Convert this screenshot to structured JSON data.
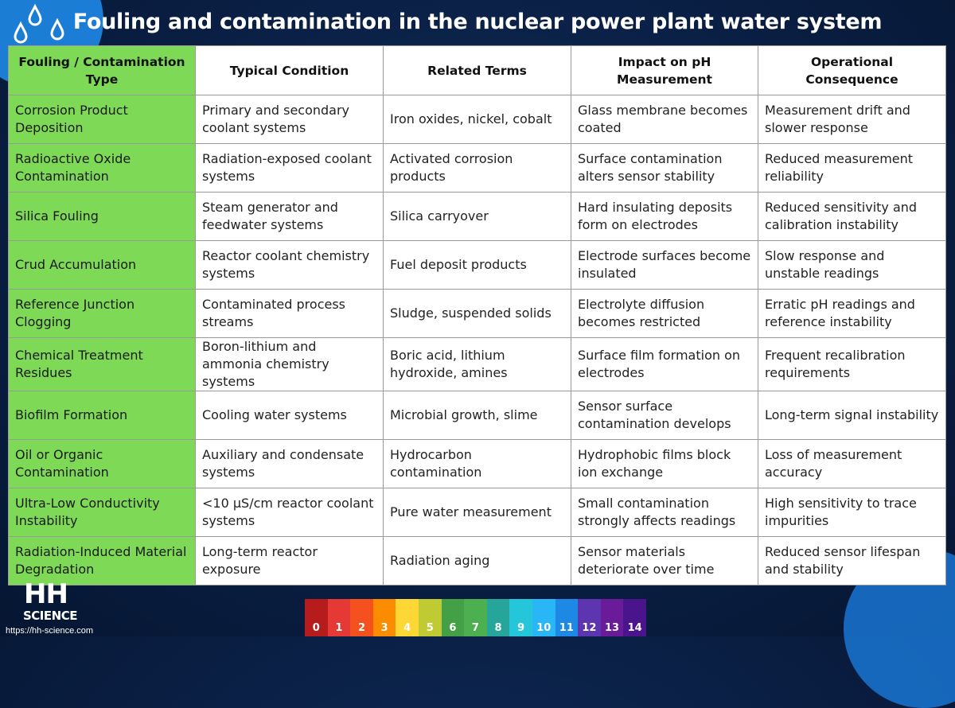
{
  "title": "Fouling and contamination in the nuclear power plant water system",
  "table": {
    "headers": [
      "Fouling / Contamination Type",
      "Typical Condition",
      "Related Terms",
      "Impact on pH Measurement",
      "Operational Consequence"
    ],
    "rows": [
      [
        "Corrosion Product Deposition",
        "Primary and secondary coolant systems",
        "Iron oxides, nickel, cobalt",
        "Glass membrane becomes coated",
        "Measurement drift and slower response"
      ],
      [
        "Radioactive Oxide Contamination",
        "Radiation-exposed coolant systems",
        "Activated corrosion products",
        "Surface contamination alters sensor stability",
        "Reduced measurement reliability"
      ],
      [
        "Silica Fouling",
        "Steam generator and feedwater systems",
        "Silica carryover",
        "Hard insulating deposits form on electrodes",
        "Reduced sensitivity and calibration instability"
      ],
      [
        "Crud Accumulation",
        "Reactor coolant chemistry systems",
        "Fuel deposit products",
        "Electrode surfaces become insulated",
        "Slow response and unstable readings"
      ],
      [
        "Reference Junction Clogging",
        "Contaminated process streams",
        "Sludge, suspended solids",
        "Electrolyte diffusion becomes restricted",
        "Erratic pH readings and reference instability"
      ],
      [
        "Chemical Treatment Residues",
        "Boron-lithium and ammonia chemistry systems",
        "Boric acid, lithium hydroxide, amines",
        "Surface film formation on electrodes",
        "Frequent recalibration requirements"
      ],
      [
        "Biofilm Formation",
        "Cooling water systems",
        "Microbial growth, slime",
        "Sensor surface contamination develops",
        "Long-term signal instability"
      ],
      [
        "Oil or Organic Contamination",
        "Auxiliary and condensate systems",
        "Hydrocarbon contamination",
        "Hydrophobic films block ion exchange",
        "Loss of measurement accuracy"
      ],
      [
        "Ultra-Low Conductivity Instability",
        "<10 µS/cm reactor coolant systems",
        "Pure water measurement",
        "Small contamination strongly affects readings",
        "High sensitivity to trace impurities"
      ],
      [
        "Radiation-Induced Material Degradation",
        "Long-term reactor exposure",
        "Radiation aging",
        "Sensor materials deteriorate over time",
        "Reduced sensor lifespan and stability"
      ]
    ]
  },
  "logo": {
    "line1": "HH",
    "line2": "SCIENCE",
    "url": "https://hh-science.com"
  },
  "ph_scale": {
    "labels": [
      "0",
      "1",
      "2",
      "3",
      "4",
      "5",
      "6",
      "7",
      "8",
      "9",
      "10",
      "11",
      "12",
      "13",
      "14"
    ],
    "colors": [
      "#b71c1c",
      "#e53935",
      "#f4511e",
      "#fb8c00",
      "#fdd835",
      "#c0ca33",
      "#43a047",
      "#4caf50",
      "#26a69a",
      "#26c6da",
      "#29b6f6",
      "#1e88e5",
      "#5e35b1",
      "#6a1b9a",
      "#4a148c"
    ]
  },
  "colors": {
    "type_column": "#7ed957",
    "background": "#0a1f44"
  }
}
